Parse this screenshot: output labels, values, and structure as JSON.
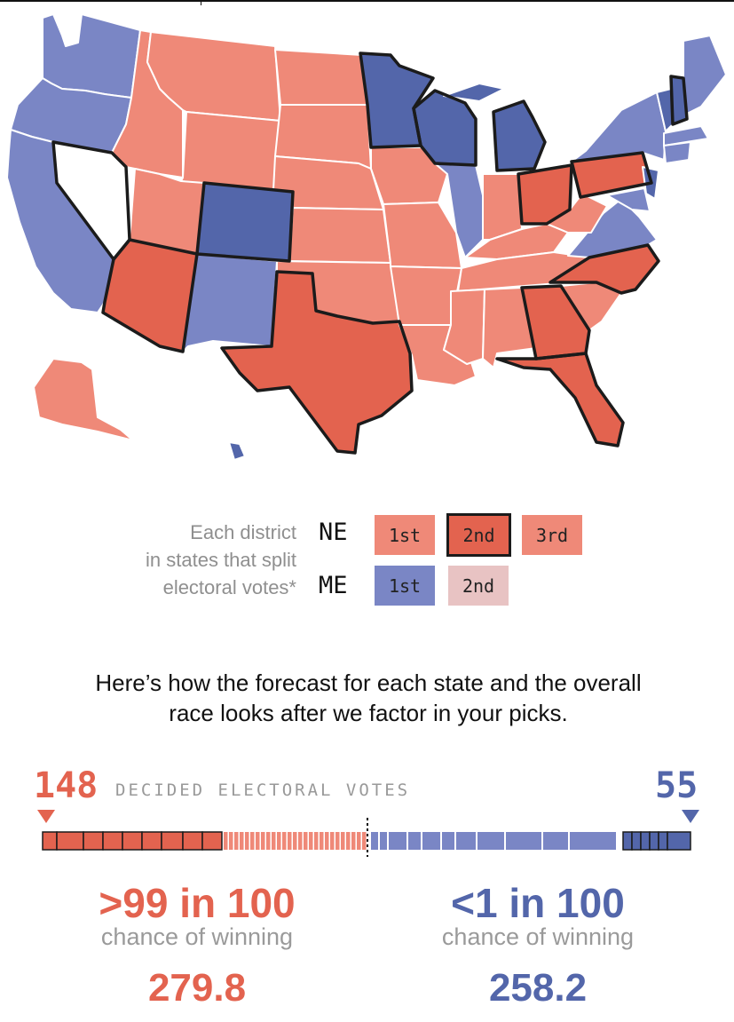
{
  "colors": {
    "rep_strong": "#e3634f",
    "rep_light": "#ef8978",
    "dem_strong": "#5366aa",
    "dem_light": "#7a86c5",
    "dem_pale": "#e8c3c3",
    "outline": "#1b1b1b"
  },
  "legend": {
    "caption_lines": [
      "Each district",
      "in states that split",
      "electoral votes*"
    ],
    "ne": {
      "state": "NE",
      "districts": [
        "1st",
        "2nd",
        "3rd"
      ]
    },
    "me": {
      "state": "ME",
      "districts": [
        "1st",
        "2nd"
      ]
    }
  },
  "intro_lines": [
    "Here’s how the forecast for each state and the overall",
    "race looks after we factor in your picks."
  ],
  "tally": {
    "rep_decided": "148",
    "dem_decided": "55",
    "label": "DECIDED ELECTORAL VOTES"
  },
  "rep": {
    "odds": ">99 in 100",
    "chance_label": "chance of winning",
    "avg_ev": "279.8"
  },
  "dem": {
    "odds": "<1 in 100",
    "chance_label": "chance of winning",
    "avg_ev": "258.2"
  }
}
